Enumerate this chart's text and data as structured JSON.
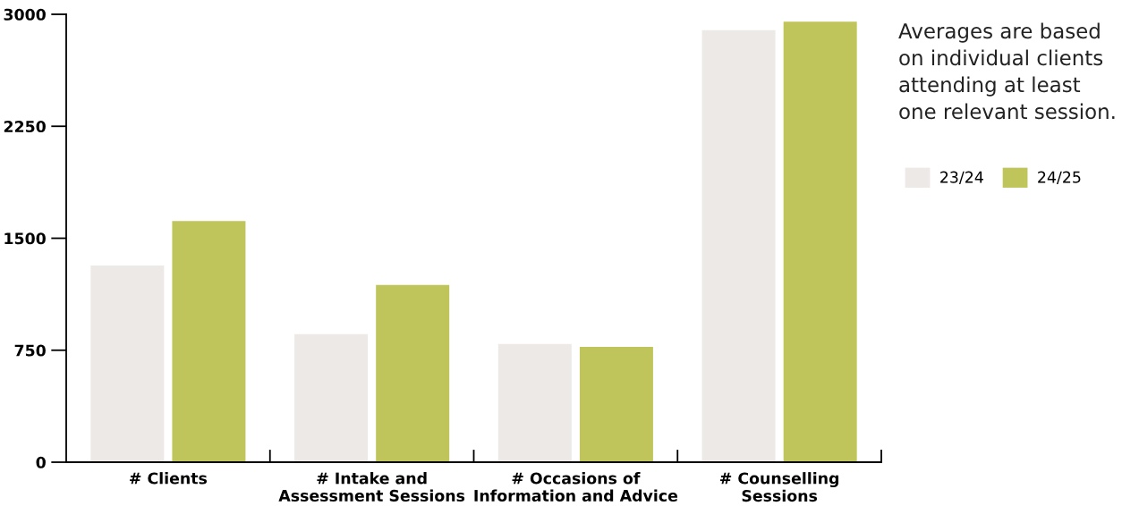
{
  "chart_data": {
    "type": "bar",
    "categories": [
      "# Clients",
      "# Intake and\nAssessment Sessions",
      "# Occasions of\nInformation and Advice",
      "# Counselling\nSessions"
    ],
    "series": [
      {
        "name": "23/24",
        "color": "#ede9e6",
        "values": [
          1317,
          858,
          792,
          2893
        ]
      },
      {
        "name": "24/25",
        "color": "#c0c55b",
        "values": [
          1615,
          1187,
          773,
          2951
        ]
      }
    ],
    "ylim": [
      0,
      3000
    ],
    "yticks": [
      0,
      750,
      1500,
      2250,
      3000
    ],
    "annotations": [
      "Averages are based on individual clients attending at least one relevant session."
    ],
    "legend": "right",
    "grid": false
  }
}
